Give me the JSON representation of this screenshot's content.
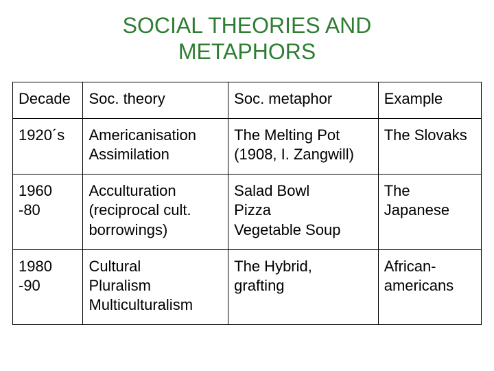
{
  "title_line1": "SOCIAL THEORIES AND",
  "title_line2": "METAPHORS",
  "title_color": "#2e7d32",
  "table": {
    "border_color": "#000000",
    "background": "#ffffff",
    "font_size": 22,
    "columns": [
      {
        "label": "Decade",
        "width_pct": 15
      },
      {
        "label": "Soc. theory",
        "width_pct": 31
      },
      {
        "label": "Soc. metaphor",
        "width_pct": 32
      },
      {
        "label": "Example",
        "width_pct": 22
      }
    ],
    "rows": [
      {
        "decade": "1920´s",
        "theory": [
          "Americanisation",
          "Assimilation"
        ],
        "metaphor": [
          "The Melting Pot",
          "(1908, I. Zangwill)"
        ],
        "example": [
          "The Slovaks"
        ]
      },
      {
        "decade": "1960 -80",
        "theory": [
          "Acculturation",
          "(reciprocal cult.",
          "borrowings)"
        ],
        "metaphor": [
          "Salad Bowl",
          "Pizza",
          "Vegetable Soup"
        ],
        "example": [
          "The Japanese"
        ]
      },
      {
        "decade": "1980 -90",
        "theory": [
          "Cultural",
          "Pluralism",
          "Multiculturalism"
        ],
        "metaphor": [
          "The Hybrid,",
          "grafting"
        ],
        "example": [
          "African-",
          "americans"
        ]
      }
    ]
  }
}
